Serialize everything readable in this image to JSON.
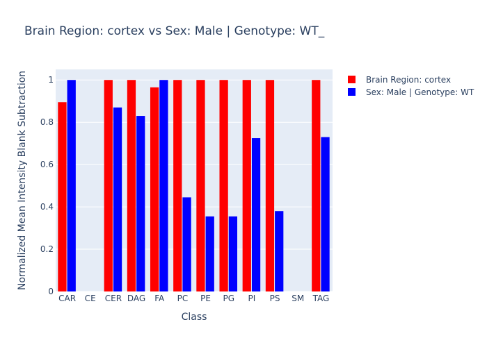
{
  "colors": {
    "plot_bg": "#e5ecf6",
    "grid": "#ffffff",
    "text": "#2a3f5f"
  },
  "chart_data": {
    "type": "bar",
    "title": "Brain Region: cortex vs Sex: Male | Genotype: WT_",
    "xlabel": "Class",
    "ylabel": "Normalized Mean Intensity Blank Subtraction",
    "ylim": [
      0,
      1.05
    ],
    "yticks": [
      0,
      0.2,
      0.4,
      0.6,
      0.8,
      1
    ],
    "ytick_labels": [
      "0",
      "0.2",
      "0.4",
      "0.6",
      "0.8",
      "1"
    ],
    "grid": true,
    "legend_position": "top-right",
    "categories": [
      "CAR",
      "CE",
      "CER",
      "DAG",
      "FA",
      "PC",
      "PE",
      "PG",
      "PI",
      "PS",
      "SM",
      "TAG"
    ],
    "series": [
      {
        "name": "Brain Region: cortex",
        "color": "#ff0000",
        "values": [
          0.895,
          null,
          1.0,
          1.0,
          0.965,
          1.0,
          1.0,
          1.0,
          1.0,
          1.0,
          null,
          1.0
        ]
      },
      {
        "name": "Sex: Male | Genotype: WT",
        "color": "#0000ff",
        "values": [
          1.0,
          null,
          0.87,
          0.83,
          1.0,
          0.445,
          0.355,
          0.355,
          0.725,
          0.38,
          null,
          0.73
        ]
      }
    ]
  }
}
